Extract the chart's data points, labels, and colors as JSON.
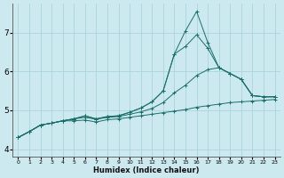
{
  "xlabel": "Humidex (Indice chaleur)",
  "bg_color": "#cce9f0",
  "grid_color": "#aad4dc",
  "line_color": "#1a6e6a",
  "xlim": [
    -0.5,
    23.5
  ],
  "ylim": [
    3.8,
    7.75
  ],
  "xticks": [
    0,
    1,
    2,
    3,
    4,
    5,
    6,
    7,
    8,
    9,
    10,
    11,
    12,
    13,
    14,
    15,
    16,
    17,
    18,
    19,
    20,
    21,
    22,
    23
  ],
  "yticks": [
    4,
    5,
    6,
    7
  ],
  "line1_y": [
    4.3,
    4.45,
    4.62,
    4.67,
    4.73,
    4.73,
    4.75,
    4.7,
    4.76,
    4.78,
    4.82,
    4.86,
    4.9,
    4.94,
    4.98,
    5.02,
    5.08,
    5.12,
    5.16,
    5.2,
    5.22,
    5.24,
    5.26,
    5.28
  ],
  "line2_y": [
    4.3,
    4.45,
    4.62,
    4.67,
    4.73,
    4.78,
    4.82,
    4.77,
    4.82,
    4.84,
    4.9,
    4.96,
    5.05,
    5.2,
    5.45,
    5.65,
    5.9,
    6.05,
    6.1,
    5.95,
    5.8,
    5.38,
    5.35,
    5.35
  ],
  "line3_y": [
    4.3,
    4.45,
    4.62,
    4.67,
    4.73,
    4.78,
    4.86,
    4.78,
    4.84,
    4.86,
    4.95,
    5.06,
    5.22,
    5.5,
    6.45,
    6.65,
    6.95,
    6.6,
    6.1,
    5.95,
    5.8,
    5.38,
    5.35,
    5.35
  ],
  "line4_y": [
    4.3,
    4.45,
    4.62,
    4.67,
    4.73,
    4.78,
    4.86,
    4.78,
    4.84,
    4.86,
    4.95,
    5.06,
    5.22,
    5.5,
    6.45,
    7.05,
    7.55,
    6.75,
    6.1,
    5.95,
    5.8,
    5.38,
    5.35,
    5.35
  ]
}
